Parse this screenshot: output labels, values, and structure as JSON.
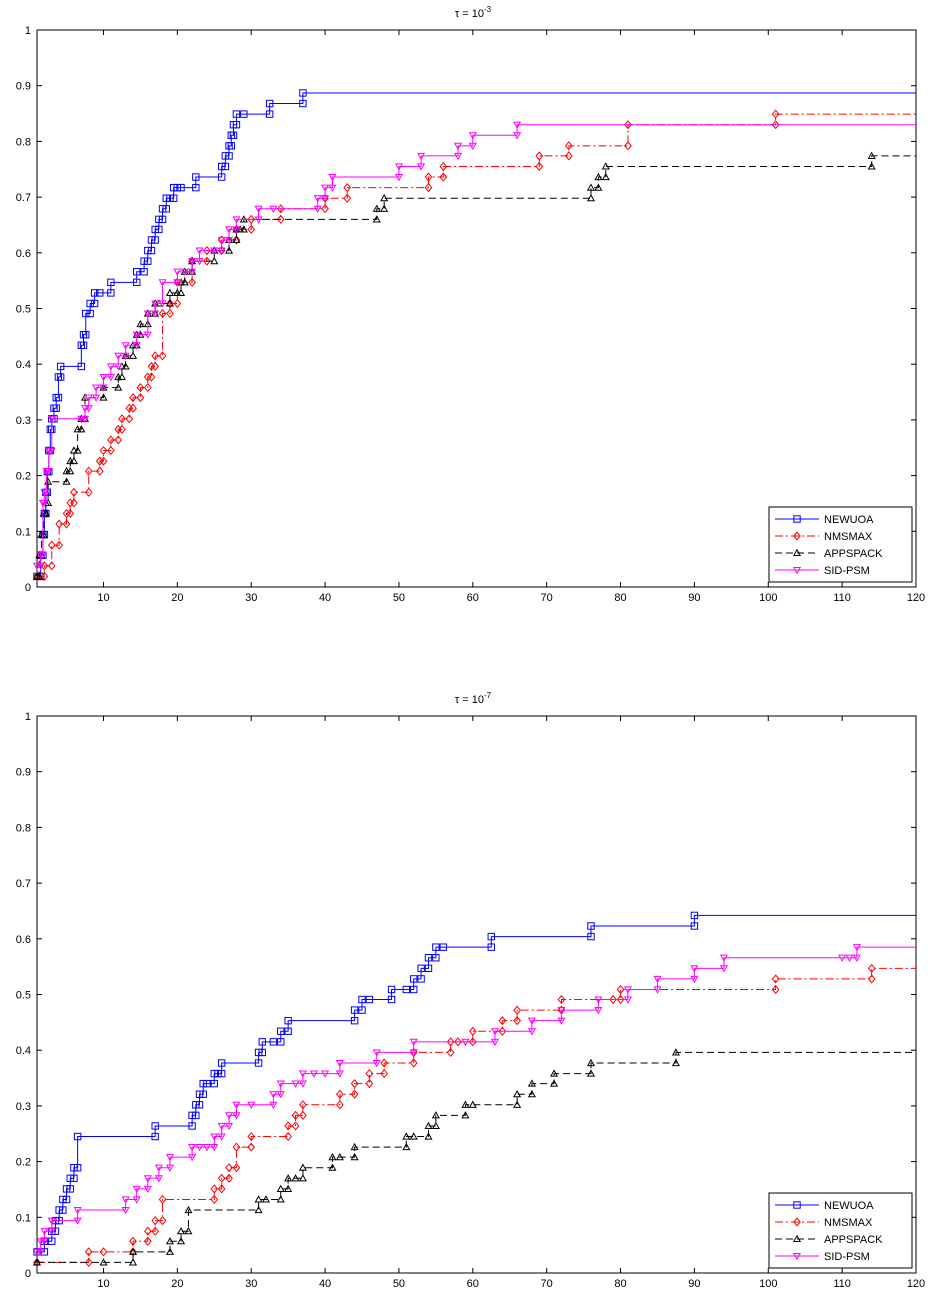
{
  "chart_data": [
    {
      "type": "line",
      "title": "τ = 10",
      "title_exp": "-3",
      "xlabel": "",
      "ylabel": "",
      "xlim": [
        1,
        120
      ],
      "ylim": [
        0,
        1
      ],
      "xticks": [
        10,
        20,
        30,
        40,
        50,
        60,
        70,
        80,
        90,
        100,
        110,
        120
      ],
      "yticks": [
        0,
        0.1,
        0.2,
        0.3,
        0.4,
        0.5,
        0.6,
        0.7,
        0.8,
        0.9,
        1
      ],
      "grid": false,
      "legend_position": "bottom-right",
      "series": [
        {
          "name": "NEWUOA",
          "color": "#0000ff",
          "dash": "",
          "marker": "square",
          "x": [
            1.0,
            1.5,
            1.8,
            2.0,
            2.2,
            2.4,
            2.6,
            2.8,
            3.0,
            3.3,
            3.6,
            3.9,
            4.2,
            7.0,
            7.3,
            7.6,
            8.2,
            8.8,
            9.5,
            11.0,
            14.5,
            15.5,
            16.0,
            16.5,
            17.0,
            17.5,
            18.0,
            18.5,
            19.0,
            19.5,
            20.0,
            20.5,
            22.5,
            26.0,
            26.5,
            27.0,
            27.3,
            27.6,
            28.0,
            29.0,
            32.5,
            37.0,
            120
          ],
          "y": [
            0.019,
            0.057,
            0.094,
            0.132,
            0.17,
            0.207,
            0.245,
            0.283,
            0.302,
            0.321,
            0.34,
            0.377,
            0.396,
            0.434,
            0.453,
            0.491,
            0.509,
            0.528,
            0.528,
            0.547,
            0.566,
            0.585,
            0.604,
            0.623,
            0.642,
            0.66,
            0.679,
            0.698,
            0.698,
            0.717,
            0.717,
            0.717,
            0.736,
            0.755,
            0.774,
            0.792,
            0.811,
            0.83,
            0.849,
            0.849,
            0.868,
            0.887,
            0.887
          ]
        },
        {
          "name": "NMSMAX",
          "color": "#ff0000",
          "dash": "8,3,2,3",
          "marker": "diamond",
          "x": [
            1.0,
            2.0,
            3.0,
            4.0,
            5.0,
            5.5,
            6.0,
            8.0,
            9.5,
            10.0,
            11.0,
            12.0,
            12.5,
            13.5,
            14.0,
            15.0,
            16.0,
            16.5,
            17.0,
            18.0,
            19.0,
            20.0,
            22.0,
            24.0,
            26.0,
            28.0,
            30.0,
            34.0,
            40.0,
            43.0,
            54.0,
            56.0,
            69.0,
            73.0,
            81.0,
            101.0,
            120
          ],
          "y": [
            0.019,
            0.038,
            0.075,
            0.113,
            0.132,
            0.151,
            0.17,
            0.208,
            0.226,
            0.245,
            0.264,
            0.283,
            0.302,
            0.321,
            0.34,
            0.358,
            0.377,
            0.396,
            0.415,
            0.491,
            0.509,
            0.547,
            0.585,
            0.604,
            0.623,
            0.642,
            0.66,
            0.679,
            0.698,
            0.717,
            0.736,
            0.755,
            0.774,
            0.792,
            0.83,
            0.849,
            0.849
          ]
        },
        {
          "name": "APPSPACK",
          "color": "#000000",
          "dash": "7,4",
          "marker": "triangle",
          "x": [
            1.0,
            1.3,
            1.6,
            1.9,
            2.2,
            2.5,
            5.0,
            5.5,
            6.0,
            6.5,
            7.0,
            7.5,
            10.0,
            12.0,
            12.5,
            13.0,
            14.0,
            14.5,
            15.0,
            16.0,
            17.0,
            17.5,
            19.0,
            20.0,
            20.5,
            21.0,
            22.0,
            25.0,
            27.0,
            28.0,
            28.5,
            29.0,
            47.0,
            48.0,
            76.0,
            77.0,
            78.0,
            114.0,
            120
          ],
          "y": [
            0.019,
            0.057,
            0.094,
            0.132,
            0.151,
            0.189,
            0.208,
            0.226,
            0.245,
            0.283,
            0.302,
            0.34,
            0.358,
            0.377,
            0.396,
            0.415,
            0.434,
            0.453,
            0.472,
            0.491,
            0.509,
            0.509,
            0.528,
            0.528,
            0.547,
            0.566,
            0.585,
            0.604,
            0.623,
            0.642,
            0.642,
            0.66,
            0.679,
            0.698,
            0.717,
            0.736,
            0.755,
            0.774,
            0.774
          ]
        },
        {
          "name": "SID-PSM",
          "color": "#ff00ff",
          "dash": "",
          "marker": "tri-down",
          "x": [
            1.0,
            1.5,
            1.8,
            2.0,
            2.3,
            2.6,
            3.0,
            7.0,
            7.5,
            8.0,
            9.0,
            10.0,
            11.0,
            12.0,
            13.0,
            14.5,
            16.0,
            17.0,
            18.0,
            20.0,
            21.0,
            22.0,
            23.0,
            25.0,
            26.0,
            27.0,
            28.0,
            31.0,
            33.0,
            39.0,
            40.0,
            41.0,
            50.0,
            53.0,
            58.0,
            60.0,
            66.0,
            120
          ],
          "y": [
            0.038,
            0.057,
            0.151,
            0.17,
            0.208,
            0.245,
            0.302,
            0.302,
            0.321,
            0.34,
            0.358,
            0.377,
            0.396,
            0.415,
            0.434,
            0.453,
            0.491,
            0.509,
            0.547,
            0.566,
            0.566,
            0.585,
            0.604,
            0.604,
            0.623,
            0.642,
            0.66,
            0.679,
            0.679,
            0.698,
            0.717,
            0.736,
            0.755,
            0.774,
            0.792,
            0.811,
            0.83,
            0.83
          ]
        }
      ]
    },
    {
      "type": "line",
      "title": "τ = 10",
      "title_exp": "-7",
      "xlabel": "",
      "ylabel": "",
      "xlim": [
        1,
        120
      ],
      "ylim": [
        0,
        1
      ],
      "xticks": [
        10,
        20,
        30,
        40,
        50,
        60,
        70,
        80,
        90,
        100,
        110,
        120
      ],
      "yticks": [
        0,
        0.1,
        0.2,
        0.3,
        0.4,
        0.5,
        0.6,
        0.7,
        0.8,
        0.9,
        1
      ],
      "grid": false,
      "legend_position": "bottom-right",
      "series": [
        {
          "name": "NEWUOA",
          "color": "#0000ff",
          "dash": "",
          "marker": "square",
          "x": [
            1.0,
            2.0,
            3.0,
            3.5,
            4.0,
            4.5,
            5.0,
            5.5,
            6.0,
            6.5,
            17.0,
            22.0,
            22.5,
            23.0,
            23.5,
            24.0,
            25.0,
            25.5,
            26.0,
            31.0,
            31.5,
            33.0,
            34.0,
            35.0,
            44.0,
            45.0,
            46.0,
            49.0,
            51.0,
            52.0,
            53.0,
            54.0,
            55.0,
            56.0,
            62.5,
            76.0,
            90.0,
            120
          ],
          "y": [
            0.038,
            0.057,
            0.075,
            0.094,
            0.113,
            0.132,
            0.151,
            0.17,
            0.189,
            0.245,
            0.264,
            0.283,
            0.302,
            0.321,
            0.34,
            0.34,
            0.358,
            0.358,
            0.377,
            0.396,
            0.415,
            0.415,
            0.434,
            0.453,
            0.472,
            0.491,
            0.491,
            0.509,
            0.509,
            0.528,
            0.547,
            0.566,
            0.585,
            0.585,
            0.604,
            0.623,
            0.642,
            0.642
          ]
        },
        {
          "name": "NMSMAX",
          "color": "#ff0000",
          "dash": "8,3,2,3",
          "marker": "diamond",
          "x": [
            1.0,
            8.0,
            10.0,
            14.0,
            16.0,
            17.0,
            18.0,
            25.0,
            26.0,
            27.0,
            28.0,
            30.0,
            35.0,
            36.0,
            37.0,
            42.0,
            44.0,
            46.0,
            48.0,
            52.0,
            57.0,
            58.0,
            60.0,
            64.0,
            66.0,
            72.0,
            79.0,
            80.0,
            101.0,
            114.0,
            120
          ],
          "y": [
            0.019,
            0.038,
            0.038,
            0.057,
            0.075,
            0.094,
            0.132,
            0.151,
            0.17,
            0.189,
            0.226,
            0.245,
            0.264,
            0.283,
            0.302,
            0.321,
            0.34,
            0.358,
            0.377,
            0.396,
            0.415,
            0.415,
            0.434,
            0.453,
            0.472,
            0.491,
            0.491,
            0.509,
            0.528,
            0.547,
            0.547
          ]
        },
        {
          "name": "APPSPACK",
          "color": "#000000",
          "dash": "7,4",
          "marker": "triangle",
          "x": [
            1.0,
            10.0,
            14.0,
            19.0,
            20.5,
            21.5,
            31.0,
            32.0,
            34.0,
            35.0,
            36.0,
            37.0,
            41.0,
            42.0,
            44.0,
            51.0,
            52.0,
            54.0,
            55.0,
            59.0,
            60.0,
            66.0,
            68.0,
            71.0,
            76.0,
            87.5,
            120
          ],
          "y": [
            0.019,
            0.019,
            0.038,
            0.057,
            0.075,
            0.113,
            0.132,
            0.132,
            0.151,
            0.17,
            0.17,
            0.189,
            0.208,
            0.208,
            0.226,
            0.245,
            0.245,
            0.264,
            0.283,
            0.302,
            0.302,
            0.321,
            0.34,
            0.358,
            0.377,
            0.396,
            0.396
          ]
        },
        {
          "name": "SID-PSM",
          "color": "#ff00ff",
          "dash": "",
          "marker": "tri-down",
          "x": [
            1.0,
            1.5,
            2.0,
            3.0,
            6.5,
            13.0,
            14.5,
            16.0,
            17.5,
            19.0,
            22.0,
            23.0,
            24.0,
            25.0,
            26.0,
            27.0,
            28.0,
            30.0,
            33.0,
            34.0,
            36.0,
            37.0,
            38.5,
            40.0,
            42.0,
            47.0,
            52.0,
            59.0,
            63.0,
            68.0,
            72.0,
            77.0,
            81.0,
            85.0,
            90.0,
            94.0,
            110.0,
            111.0,
            112.0,
            120
          ],
          "y": [
            0.038,
            0.057,
            0.075,
            0.094,
            0.113,
            0.132,
            0.151,
            0.17,
            0.189,
            0.208,
            0.226,
            0.226,
            0.226,
            0.245,
            0.264,
            0.283,
            0.302,
            0.302,
            0.321,
            0.34,
            0.34,
            0.358,
            0.358,
            0.358,
            0.377,
            0.396,
            0.415,
            0.415,
            0.434,
            0.453,
            0.472,
            0.491,
            0.509,
            0.528,
            0.547,
            0.566,
            0.566,
            0.566,
            0.585,
            0.585
          ]
        }
      ]
    }
  ]
}
